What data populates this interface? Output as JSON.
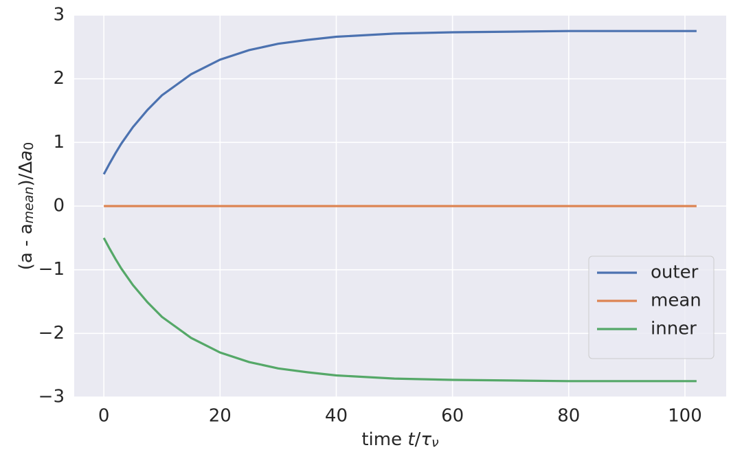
{
  "chart_data": {
    "type": "line",
    "x": [
      0,
      1,
      2,
      3,
      5,
      7.5,
      10,
      15,
      20,
      25,
      30,
      35,
      40,
      50,
      60,
      70,
      80,
      90,
      102
    ],
    "series": [
      {
        "name": "outer",
        "color": "#4c72b0",
        "values": [
          0.5,
          0.67,
          0.83,
          0.98,
          1.24,
          1.51,
          1.74,
          2.07,
          2.3,
          2.45,
          2.55,
          2.61,
          2.66,
          2.71,
          2.73,
          2.74,
          2.75,
          2.75,
          2.75
        ]
      },
      {
        "name": "mean",
        "color": "#dd8452",
        "values": [
          0,
          0,
          0,
          0,
          0,
          0,
          0,
          0,
          0,
          0,
          0,
          0,
          0,
          0,
          0,
          0,
          0,
          0,
          0
        ]
      },
      {
        "name": "inner",
        "color": "#55a868",
        "values": [
          -0.5,
          -0.67,
          -0.83,
          -0.98,
          -1.24,
          -1.51,
          -1.74,
          -2.07,
          -2.3,
          -2.45,
          -2.55,
          -2.61,
          -2.66,
          -2.71,
          -2.73,
          -2.74,
          -2.75,
          -2.75,
          -2.75
        ]
      }
    ],
    "xlabel": [
      "time ",
      "t",
      "/",
      "τ",
      "ν"
    ],
    "ylabel": [
      "(a - a",
      "mean",
      ")/Δ",
      "a",
      "0"
    ],
    "xlim": [
      -5.1,
      107.1
    ],
    "ylim": [
      -3,
      3
    ],
    "xticks": [
      0,
      20,
      40,
      60,
      80,
      100
    ],
    "yticks": [
      {
        "value": -3,
        "label": "−3"
      },
      {
        "value": -2,
        "label": "−2"
      },
      {
        "value": -1,
        "label": "−1"
      },
      0,
      1,
      2,
      3
    ],
    "grid": true,
    "legend": "lower right"
  }
}
